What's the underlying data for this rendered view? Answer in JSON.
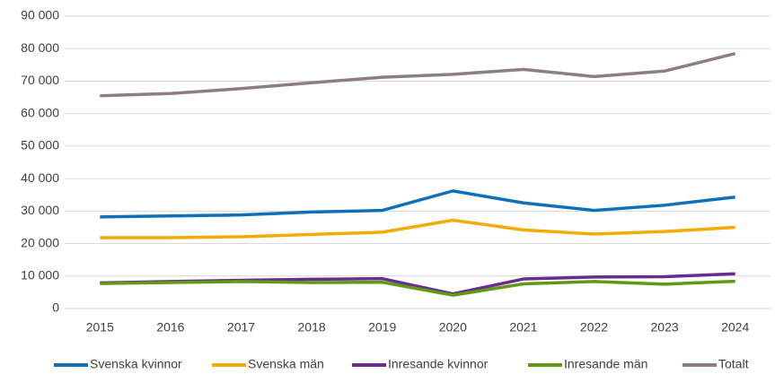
{
  "chart_data": {
    "type": "line",
    "categories": [
      "2015",
      "2016",
      "2017",
      "2018",
      "2019",
      "2020",
      "2021",
      "2022",
      "2023",
      "2024"
    ],
    "series": [
      {
        "name": "Svenska kvinnor",
        "color": "#0f70b7",
        "values": [
          28200,
          28500,
          28800,
          29700,
          30200,
          36200,
          32500,
          30200,
          31800,
          34300
        ]
      },
      {
        "name": "Svenska män",
        "color": "#f2ab00",
        "values": [
          21800,
          21800,
          22100,
          22800,
          23500,
          27200,
          24200,
          22900,
          23700,
          25000
        ]
      },
      {
        "name": "Inresande kvinnor",
        "color": "#6a2c91",
        "values": [
          7900,
          8300,
          8700,
          9000,
          9200,
          4500,
          9100,
          9700,
          9800,
          10700
        ]
      },
      {
        "name": "Inresande män",
        "color": "#5e9a13",
        "values": [
          7700,
          8000,
          8300,
          8000,
          8100,
          4100,
          7600,
          8300,
          7500,
          8400
        ]
      },
      {
        "name": "Totalt",
        "color": "#8d7f7f",
        "values": [
          65500,
          66200,
          67700,
          69500,
          71200,
          72100,
          73600,
          71400,
          73100,
          78500
        ]
      }
    ],
    "ylim": [
      0,
      90000
    ],
    "yticks": [
      0,
      {
        "value": 10000,
        "label": "10 000"
      },
      {
        "value": 20000,
        "label": "20 000"
      },
      {
        "value": 30000,
        "label": "30 000"
      },
      {
        "value": 40000,
        "label": "40 000"
      },
      {
        "value": 50000,
        "label": "50 000"
      },
      {
        "value": 60000,
        "label": "60 000"
      },
      {
        "value": 70000,
        "label": "70 000"
      },
      {
        "value": 80000,
        "label": "80 000"
      },
      {
        "value": 90000,
        "label": "90 000"
      }
    ],
    "grid": true,
    "legend": "bottom"
  }
}
